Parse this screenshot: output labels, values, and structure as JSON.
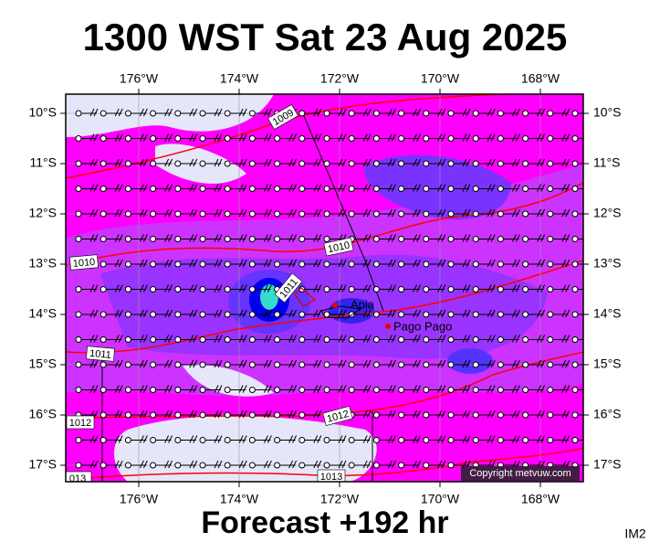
{
  "title": "1300 WST Sat 23 Aug 2025",
  "footer": "Forecast +192 hr",
  "image_id": "IM2",
  "copyright": "Copyright metvuw.com",
  "longitudes": [
    "176°W",
    "174°W",
    "172°W",
    "170°W",
    "168°W"
  ],
  "latitudes": [
    "10°S",
    "11°S",
    "12°S",
    "13°S",
    "14°S",
    "15°S",
    "16°S",
    "17°S"
  ],
  "isobar_labels": [
    "1009",
    "1010",
    "1010",
    "1011",
    "1011",
    "1012",
    "1012",
    "1013",
    "013"
  ],
  "places": [
    "Apia",
    "Pago Pago"
  ]
}
